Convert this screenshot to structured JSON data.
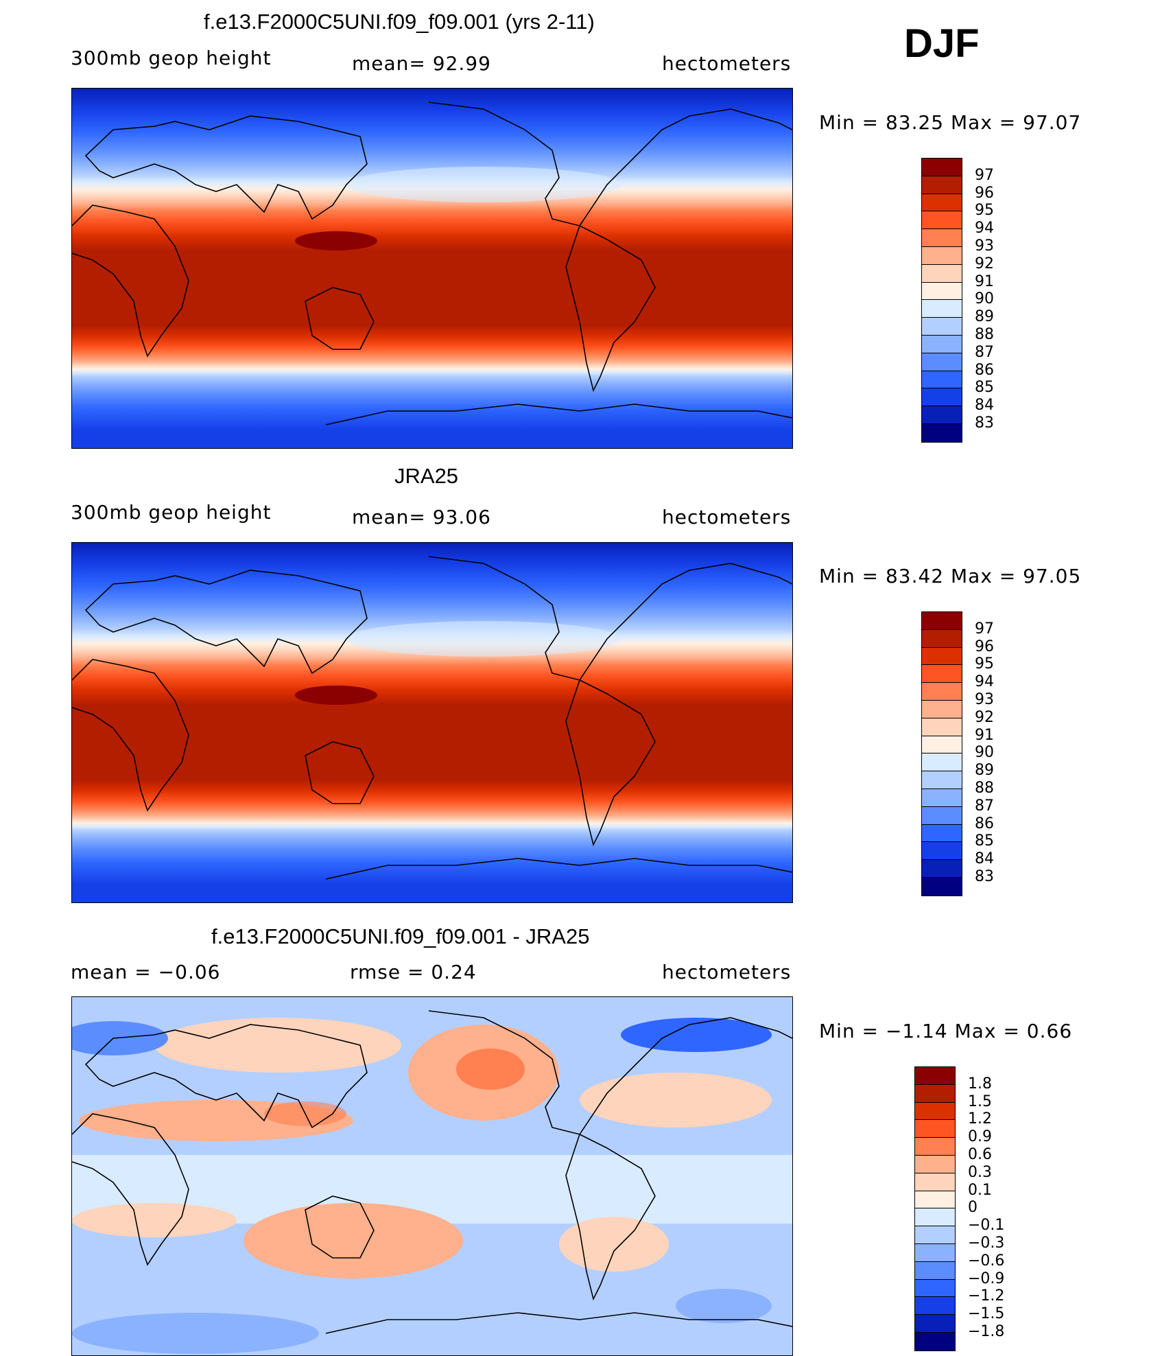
{
  "season": "DJF",
  "panels": [
    {
      "title": "f.e13.F2000C5UNI.f09_f09.001 (yrs 2-11)",
      "left_label": "300mb geop height",
      "center_label": "mean=   92.99",
      "right_label": "hectometers",
      "minmax_label": "Min =   83.25 Max =   97.07",
      "levels": [
        "97",
        "96",
        "95",
        "94",
        "93",
        "92",
        "91",
        "90",
        "89",
        "88",
        "87",
        "86",
        "85",
        "84",
        "83"
      ],
      "colors": [
        "#8b0000",
        "#b41e00",
        "#dd3000",
        "#ff5522",
        "#ff8050",
        "#ffb08c",
        "#ffd4bc",
        "#fff0e3",
        "#d9ebff",
        "#b3cfff",
        "#8bb2ff",
        "#5b8dff",
        "#2f66ff",
        "#1540e8",
        "#0820b8",
        "#000080"
      ]
    },
    {
      "title": "JRA25",
      "left_label": "300mb geop height",
      "center_label": "mean=   93.06",
      "right_label": "hectometers",
      "minmax_label": "Min =   83.42 Max =   97.05",
      "levels": [
        "97",
        "96",
        "95",
        "94",
        "93",
        "92",
        "91",
        "90",
        "89",
        "88",
        "87",
        "86",
        "85",
        "84",
        "83"
      ],
      "colors": [
        "#8b0000",
        "#b41e00",
        "#dd3000",
        "#ff5522",
        "#ff8050",
        "#ffb08c",
        "#ffd4bc",
        "#fff0e3",
        "#d9ebff",
        "#b3cfff",
        "#8bb2ff",
        "#5b8dff",
        "#2f66ff",
        "#1540e8",
        "#0820b8",
        "#000080"
      ]
    },
    {
      "title": "f.e13.F2000C5UNI.f09_f09.001 - JRA25",
      "left_label": "mean =   −0.06",
      "center_label": "rmse =    0.24",
      "right_label": "hectometers",
      "minmax_label": "Min =  −1.14 Max =    0.66",
      "levels": [
        "1.8",
        "1.5",
        "1.2",
        "0.9",
        "0.6",
        "0.3",
        "0.1",
        "0",
        "−0.1",
        "−0.3",
        "−0.6",
        "−0.9",
        "−1.2",
        "−1.5",
        "−1.8"
      ],
      "colors": [
        "#8b0000",
        "#b41e00",
        "#dd3000",
        "#ff5522",
        "#ff8050",
        "#ffb08c",
        "#ffd4bc",
        "#fff0e3",
        "#d9ebff",
        "#b3cfff",
        "#8bb2ff",
        "#5b8dff",
        "#2f66ff",
        "#1540e8",
        "#0820b8",
        "#000080"
      ]
    }
  ]
}
